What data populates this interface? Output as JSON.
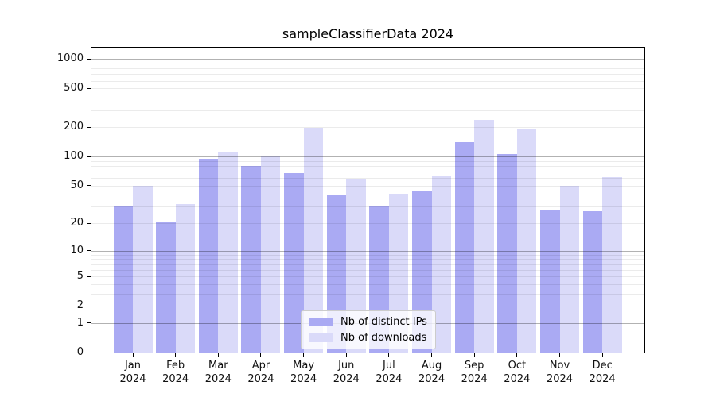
{
  "chart_data": {
    "type": "bar",
    "title": "sampleClassifierData 2024",
    "categories": [
      "Jan 2024",
      "Feb 2024",
      "Mar 2024",
      "Apr 2024",
      "May 2024",
      "Jun 2024",
      "Jul 2024",
      "Aug 2024",
      "Sep 2024",
      "Oct 2024",
      "Nov 2024",
      "Dec 2024"
    ],
    "series": [
      {
        "name": "Nb of distinct IPs",
        "color": "#aaaaf3",
        "values": [
          30,
          21,
          95,
          80,
          68,
          40,
          31,
          44,
          140,
          107,
          28,
          27
        ]
      },
      {
        "name": "Nb of downloads",
        "color": "#dadaf9",
        "values": [
          50,
          32,
          112,
          102,
          199,
          58,
          41,
          62,
          240,
          195,
          50,
          61
        ]
      }
    ],
    "ylabel": "",
    "xlabel": "",
    "yscale": "log1p",
    "yticks": [
      0,
      1,
      2,
      5,
      10,
      20,
      50,
      100,
      200,
      500,
      1000
    ],
    "ylim": [
      0,
      1310
    ],
    "grid": "horizontal major+minor log decades",
    "legend_position": "inside-bottom-center"
  },
  "colors": {
    "axis": "#000000",
    "tick_text": "#111111",
    "major_grid": "rgba(0,0,0,0.30)",
    "minor_grid": "rgba(0,0,0,0.08)",
    "background": "#ffffff"
  }
}
